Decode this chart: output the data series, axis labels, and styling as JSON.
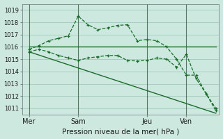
{
  "xlabel": "Pression niveau de la mer( hPa )",
  "bg_color": "#cce8df",
  "grid_color": "#a0c8bc",
  "line_color": "#1a6b2a",
  "vline_color": "#557766",
  "ylim": [
    1010.5,
    1019.5
  ],
  "yticks": [
    1011,
    1012,
    1013,
    1014,
    1015,
    1016,
    1017,
    1018,
    1019
  ],
  "xlim": [
    -4,
    116
  ],
  "xtick_labels": [
    "Mer",
    "Sam",
    "Jeu",
    "Ven"
  ],
  "xtick_positions": [
    0,
    30,
    72,
    96
  ],
  "vlines": [
    0,
    30,
    72,
    96
  ],
  "series": [
    {
      "x": [
        0,
        6,
        12,
        18,
        24,
        30,
        36,
        42,
        48,
        54,
        60,
        66,
        72,
        78,
        84,
        90,
        96,
        102,
        108,
        114
      ],
      "y": [
        1015.8,
        1016.1,
        1016.5,
        1016.7,
        1016.9,
        1018.5,
        1017.8,
        1017.4,
        1017.55,
        1017.75,
        1017.8,
        1016.5,
        1016.6,
        1016.5,
        1016.0,
        1015.0,
        1013.7,
        1013.7,
        1012.2,
        1011.0
      ],
      "marker": "+",
      "linestyle": "--"
    },
    {
      "x": [
        0,
        6,
        12,
        18,
        24,
        30,
        36,
        42,
        48,
        54,
        60,
        66,
        72,
        78,
        84,
        90,
        96,
        102,
        108,
        114
      ],
      "y": [
        1015.6,
        1015.8,
        1015.6,
        1015.3,
        1015.1,
        1014.9,
        1015.1,
        1015.2,
        1015.3,
        1015.3,
        1014.9,
        1014.85,
        1014.9,
        1015.1,
        1015.0,
        1014.35,
        1015.4,
        1013.4,
        1012.2,
        1010.8
      ],
      "marker": "+",
      "linestyle": "--"
    },
    {
      "x": [
        0,
        114
      ],
      "y": [
        1016.0,
        1016.0
      ],
      "marker": null,
      "linestyle": "-"
    },
    {
      "x": [
        0,
        114
      ],
      "y": [
        1015.6,
        1010.6
      ],
      "marker": null,
      "linestyle": "-"
    }
  ]
}
